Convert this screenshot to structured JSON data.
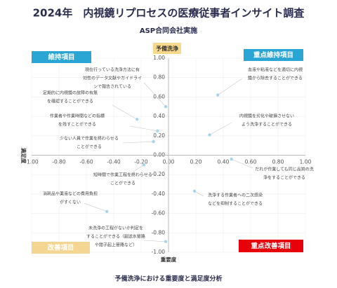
{
  "chart_data": {
    "type": "scatter",
    "title": "2024年　内視鏡リプロセスの医療従事者インサイト調査",
    "subtitle": "ASP合同会社実施",
    "header_label": "予備洗浄",
    "xlabel": "重要度",
    "ylabel": "満足度",
    "caption": "予備洗浄における重要度と満足度分析",
    "color": "#a6d6ec",
    "grid": true,
    "x": [
      -0.02,
      -0.23,
      -0.08,
      -0.11,
      0.36,
      0.3,
      0.46,
      -0.18,
      0.19,
      -0.45,
      -0.02
    ],
    "values": [
      0.5,
      0.37,
      0.25,
      0.14,
      0.62,
      0.21,
      -0.04,
      -0.1,
      -0.37,
      -0.58,
      -0.89
    ],
    "labels": [
      [
        "現在行っている洗浄方法に有",
        "効性のデータ文献やガイドライ",
        "ンで報告されている"
      ],
      [
        "定期的に内視鏡の故障の有無",
        "を確認することができる"
      ],
      [
        "作業者や作業時間などの指標",
        "を残すことができる"
      ],
      [
        "少ない人員で作業を終わらせる",
        "ことができる"
      ],
      [
        "血液や粘液などを適切に内視",
        "鏡から除去することができる"
      ],
      [
        "内視鏡を劣化や破損させない",
        "よう洗浄することができる"
      ],
      [
        "だれが作業しても同じ品質の洗",
        "浄をすることができる"
      ],
      [
        "短時間で作業工程を終わらせる",
        "ことができる"
      ],
      [
        "洗浄する作業者への二次感染",
        "などを抑制することができる"
      ],
      [
        "消耗品や薬液などの費用負担",
        "がすくない"
      ],
      [
        "未洗浄の工程がないか判定を",
        "することができる（副送水管路",
        "や鉗子起上管路など）"
      ]
    ],
    "quadrants": [
      {
        "label": "維持項目",
        "color": "#2aa6d5"
      },
      {
        "label": "重点維持項目",
        "color": "#2aa6d5"
      },
      {
        "label": "改善項目",
        "color": "#f5d592"
      },
      {
        "label": "重点改善項目",
        "color": "#e8000b"
      }
    ],
    "xlim": [
      -1,
      1
    ],
    "ylim": [
      -1,
      1
    ],
    "xticks": [
      {
        "value": -1,
        "label": "-1.00"
      },
      {
        "value": -0.8,
        "label": "-0.80"
      },
      {
        "value": -0.6,
        "label": "-0.60"
      },
      {
        "value": -0.4,
        "label": "-0.40"
      },
      {
        "value": -0.2,
        "label": "-0.20"
      },
      {
        "value": 0,
        "label": "0.00"
      },
      {
        "value": 0.2,
        "label": "0.20"
      },
      {
        "value": 0.4,
        "label": "0.40"
      },
      {
        "value": 0.6,
        "label": "0.60"
      },
      {
        "value": 0.8,
        "label": "0.80"
      },
      {
        "value": 1,
        "label": "1.00"
      }
    ],
    "yticks": [
      {
        "value": -1,
        "label": "-1.00"
      },
      {
        "value": -0.8,
        "label": "-0.80"
      },
      {
        "value": -0.6,
        "label": "-0.60"
      },
      {
        "value": -0.4,
        "label": "-0.40"
      },
      {
        "value": -0.2,
        "label": "-0.20"
      },
      {
        "value": 0,
        "label": "0.00"
      },
      {
        "value": 0.2,
        "label": "0.20"
      },
      {
        "value": 0.4,
        "label": "0.40"
      },
      {
        "value": 0.6,
        "label": "0.60"
      },
      {
        "value": 0.8,
        "label": "0.80"
      },
      {
        "value": 1,
        "label": "1.00"
      }
    ]
  }
}
